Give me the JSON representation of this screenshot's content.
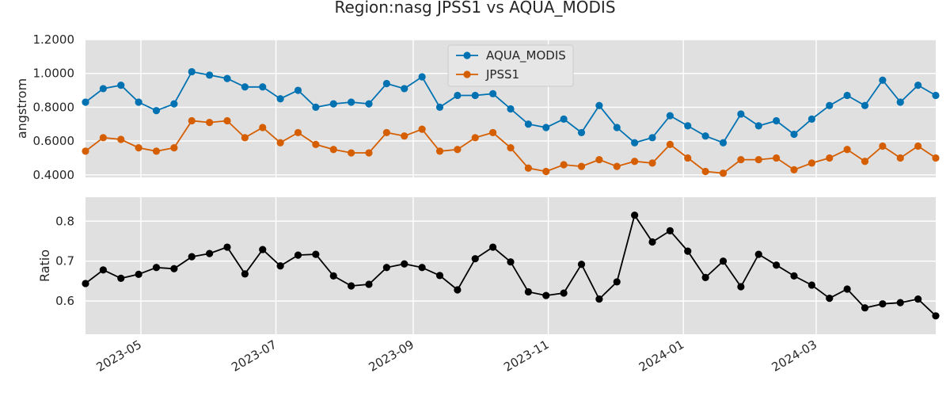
{
  "title": "Region:nasg JPSS1 vs AQUA_MODIS",
  "colors": {
    "aqua": "#0072b2",
    "jpss": "#d55e00",
    "ratio": "#000000",
    "panel_bg": "#e0e0e0",
    "grid": "#ffffff"
  },
  "chart_data": [
    {
      "type": "line",
      "ylabel": "angstrom",
      "ylim": [
        0.385,
        1.2
      ],
      "yticks": [
        0.4,
        0.6,
        0.8,
        1.0,
        1.2
      ],
      "ytick_labels": [
        "0.4000",
        "0.6000",
        "0.8000",
        "1.0000",
        "1.2000"
      ],
      "xlim": [
        "2023-04-06",
        "2024-04-24"
      ],
      "grid": true,
      "legend_position": "top-center",
      "series": [
        {
          "name": "AQUA_MODIS",
          "color_key": "aqua",
          "values": [
            0.83,
            0.91,
            0.93,
            0.83,
            0.78,
            0.82,
            1.01,
            0.99,
            0.97,
            0.92,
            0.92,
            0.85,
            0.9,
            0.8,
            0.82,
            0.83,
            0.82,
            0.94,
            0.91,
            0.98,
            0.8,
            0.87,
            0.87,
            0.88,
            0.79,
            0.7,
            0.68,
            0.73,
            0.65,
            0.81,
            0.68,
            0.59,
            0.62,
            0.75,
            0.69,
            0.63,
            0.59,
            0.76,
            0.69,
            0.72,
            0.64,
            0.73,
            0.81,
            0.87,
            0.81,
            0.96,
            0.83,
            0.93,
            0.87
          ]
        },
        {
          "name": "JPSS1",
          "color_key": "jpss",
          "values": [
            0.54,
            0.62,
            0.61,
            0.56,
            0.54,
            0.56,
            0.72,
            0.71,
            0.72,
            0.62,
            0.68,
            0.59,
            0.65,
            0.58,
            0.55,
            0.53,
            0.53,
            0.65,
            0.63,
            0.67,
            0.54,
            0.55,
            0.62,
            0.65,
            0.56,
            0.44,
            0.42,
            0.46,
            0.45,
            0.49,
            0.45,
            0.48,
            0.47,
            0.58,
            0.5,
            0.42,
            0.41,
            0.49,
            0.49,
            0.5,
            0.43,
            0.47,
            0.5,
            0.55,
            0.48,
            0.57,
            0.5,
            0.57,
            0.5
          ]
        }
      ]
    },
    {
      "type": "line",
      "ylabel": "Ratio",
      "ylim": [
        0.517,
        0.86
      ],
      "yticks": [
        0.6,
        0.7,
        0.8
      ],
      "ytick_labels": [
        "0.6",
        "0.7",
        "0.8"
      ],
      "xlim": [
        "2023-04-06",
        "2024-04-24"
      ],
      "grid": true,
      "series": [
        {
          "color_key": "ratio",
          "values": [
            0.644,
            0.678,
            0.657,
            0.667,
            0.684,
            0.681,
            0.711,
            0.719,
            0.735,
            0.668,
            0.729,
            0.688,
            0.715,
            0.717,
            0.663,
            0.638,
            0.642,
            0.684,
            0.693,
            0.684,
            0.664,
            0.628,
            0.706,
            0.735,
            0.698,
            0.623,
            0.614,
            0.62,
            0.692,
            0.605,
            0.648,
            0.815,
            0.748,
            0.776,
            0.725,
            0.659,
            0.7,
            0.636,
            0.717,
            0.69,
            0.663,
            0.64,
            0.607,
            0.63,
            0.583,
            0.593,
            0.596,
            0.605,
            0.563
          ]
        }
      ]
    }
  ],
  "x_dates_start": "2023-04-06",
  "x_step_days": 8,
  "x_point_count": 49,
  "xtick_dates": [
    "2023-05-01",
    "2023-07-01",
    "2023-09-01",
    "2023-11-01",
    "2024-01-01",
    "2024-03-01"
  ],
  "xtick_labels": [
    "2023-05",
    "2023-07",
    "2023-09",
    "2023-11",
    "2024-01",
    "2024-03"
  ]
}
